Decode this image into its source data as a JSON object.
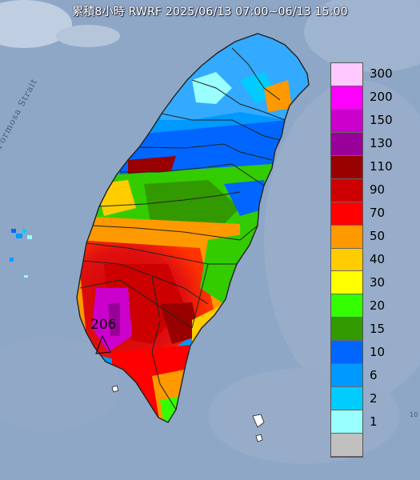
{
  "title": "累積8小時 RWRF 2025/06/13 07:00~06/13 15:00",
  "strait_label": "Formosa Strait",
  "peak_value": "206",
  "corner_mark": "10",
  "colors": {
    "ocean": "#8ea7c6",
    "border": "#222222"
  },
  "legend": {
    "items": [
      {
        "label": "300",
        "color": "#ffc8ff"
      },
      {
        "label": "200",
        "color": "#ff00ff"
      },
      {
        "label": "150",
        "color": "#cc00cc"
      },
      {
        "label": "130",
        "color": "#990099"
      },
      {
        "label": "110",
        "color": "#990000"
      },
      {
        "label": "90",
        "color": "#cc0000"
      },
      {
        "label": "70",
        "color": "#ff0000"
      },
      {
        "label": "50",
        "color": "#ff9900"
      },
      {
        "label": "40",
        "color": "#ffcc00"
      },
      {
        "label": "30",
        "color": "#ffff00"
      },
      {
        "label": "20",
        "color": "#33ff00"
      },
      {
        "label": "15",
        "color": "#339900"
      },
      {
        "label": "10",
        "color": "#0066ff"
      },
      {
        "label": "6",
        "color": "#0099ff"
      },
      {
        "label": "2",
        "color": "#00ccff"
      },
      {
        "label": "1",
        "color": "#99ffff"
      },
      {
        "label": "",
        "color": "#c0c0c0"
      }
    ]
  }
}
